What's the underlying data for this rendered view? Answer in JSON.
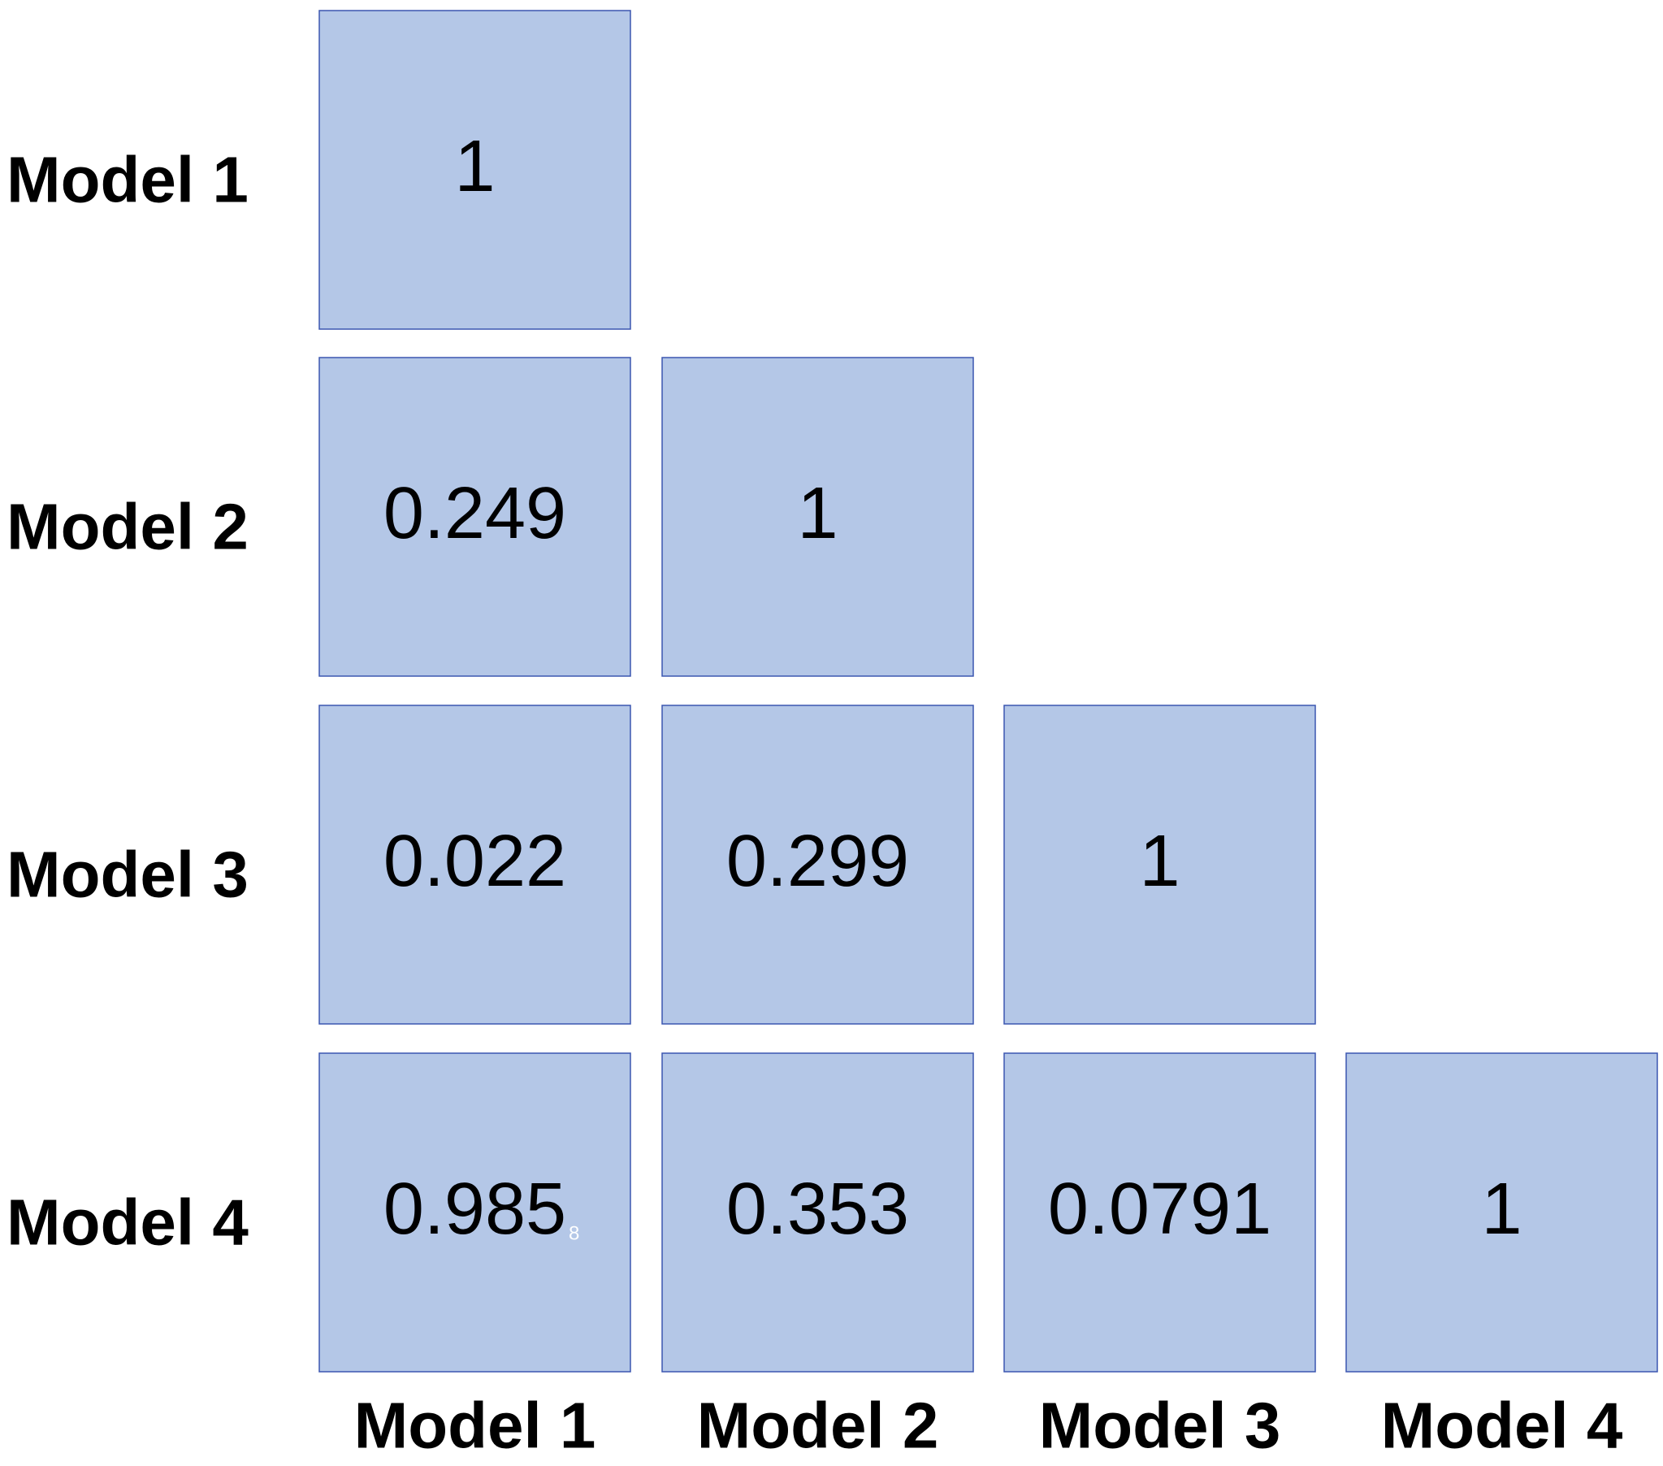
{
  "table": {
    "row_labels": [
      "Model 1",
      "Model 2",
      "Model 3",
      "Model 4"
    ],
    "col_labels": [
      "Model 1",
      "Model 2",
      "Model 3",
      "Model 4"
    ],
    "rows": [
      [
        1
      ],
      [
        0.249,
        1
      ],
      [
        0.022,
        0.299,
        1
      ],
      [
        0.985,
        0.353,
        0.0791,
        1
      ]
    ],
    "stray_mark": "8"
  }
}
